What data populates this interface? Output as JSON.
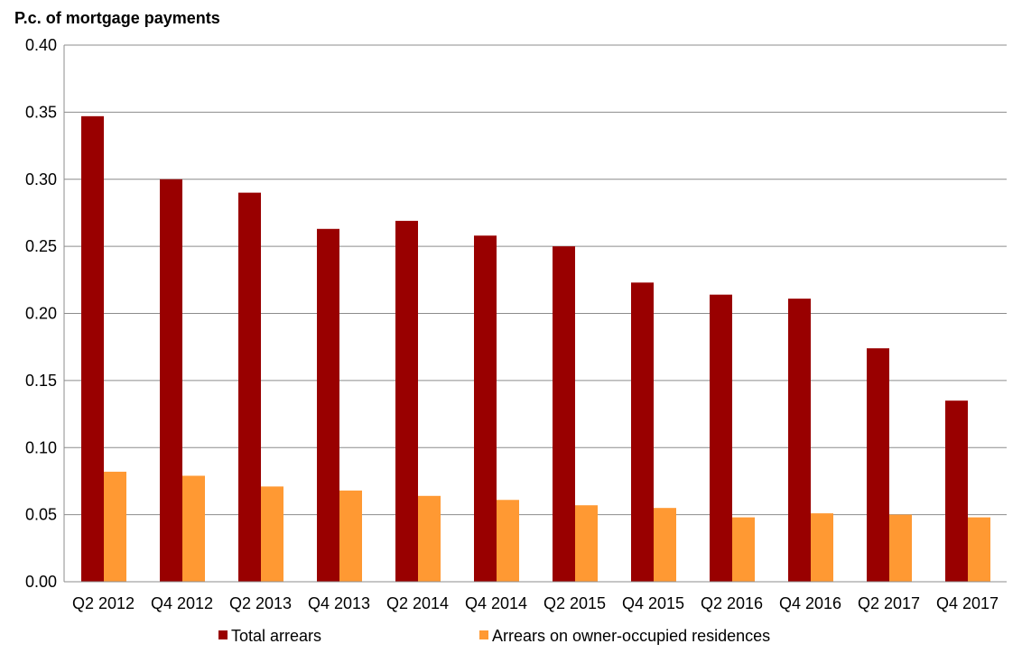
{
  "chart_data": {
    "type": "bar",
    "title": "P.c. of mortgage payments",
    "xlabel": "",
    "ylabel": "",
    "ylim": [
      0,
      0.4
    ],
    "yticks": [
      "0.00",
      "0.05",
      "0.10",
      "0.15",
      "0.20",
      "0.25",
      "0.30",
      "0.35",
      "0.40"
    ],
    "grid": true,
    "legend_position": "bottom",
    "categories": [
      "Q2 2012",
      "Q4 2012",
      "Q2 2013",
      "Q4 2013",
      "Q2 2014",
      "Q4 2014",
      "Q2 2015",
      "Q4 2015",
      "Q2 2016",
      "Q4 2016",
      "Q2 2017",
      "Q4 2017"
    ],
    "series": [
      {
        "name": "Total arrears",
        "color": "#990000",
        "values": [
          0.347,
          0.3,
          0.29,
          0.263,
          0.269,
          0.258,
          0.25,
          0.223,
          0.214,
          0.211,
          0.174,
          0.135
        ]
      },
      {
        "name": "Arrears on owner-occupied residences",
        "color": "#ff9933",
        "values": [
          0.082,
          0.079,
          0.071,
          0.068,
          0.064,
          0.061,
          0.057,
          0.055,
          0.048,
          0.051,
          0.05,
          0.048
        ]
      }
    ]
  }
}
